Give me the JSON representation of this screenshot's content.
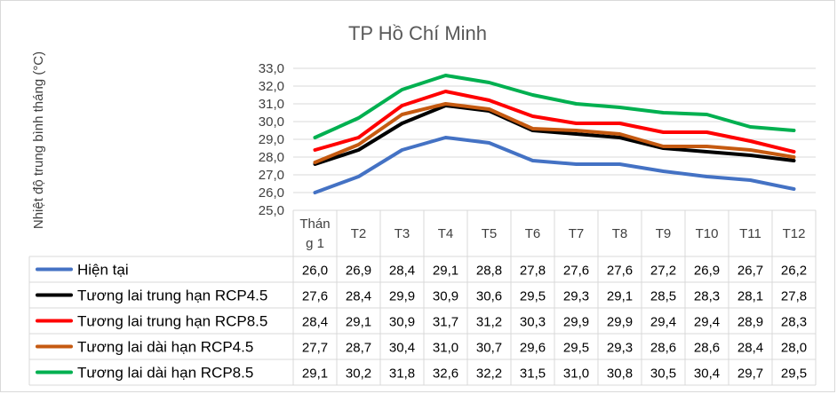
{
  "chart_data": {
    "type": "line",
    "title": "TP Hồ Chí Minh",
    "ylabel": "Nhiệt độ trung bình tháng (°C)",
    "ylim": [
      25.0,
      33.0
    ],
    "yticks": [
      "33,0",
      "32,0",
      "31,0",
      "30,0",
      "29,0",
      "28,0",
      "27,0",
      "26,0",
      "25,0"
    ],
    "categories": [
      "Tháng 1",
      "T2",
      "T3",
      "T4",
      "T5",
      "T6",
      "T7",
      "T8",
      "T9",
      "T10",
      "T11",
      "T12"
    ],
    "series": [
      {
        "name": "Hiện tại",
        "color": "#4472C4",
        "values": [
          26.0,
          26.9,
          28.4,
          29.1,
          28.8,
          27.8,
          27.6,
          27.6,
          27.2,
          26.9,
          26.7,
          26.2
        ],
        "labels": [
          "26,0",
          "26,9",
          "28,4",
          "29,1",
          "28,8",
          "27,8",
          "27,6",
          "27,6",
          "27,2",
          "26,9",
          "26,7",
          "26,2"
        ]
      },
      {
        "name": "Tương lai trung hạn RCP4.5",
        "color": "#000000",
        "values": [
          27.6,
          28.4,
          29.9,
          30.9,
          30.6,
          29.5,
          29.3,
          29.1,
          28.5,
          28.3,
          28.1,
          27.8
        ],
        "labels": [
          "27,6",
          "28,4",
          "29,9",
          "30,9",
          "30,6",
          "29,5",
          "29,3",
          "29,1",
          "28,5",
          "28,3",
          "28,1",
          "27,8"
        ]
      },
      {
        "name": "Tương lai trung hạn RCP8.5",
        "color": "#FF0000",
        "values": [
          28.4,
          29.1,
          30.9,
          31.7,
          31.2,
          30.3,
          29.9,
          29.9,
          29.4,
          29.4,
          28.9,
          28.3
        ],
        "labels": [
          "28,4",
          "29,1",
          "30,9",
          "31,7",
          "31,2",
          "30,3",
          "29,9",
          "29,9",
          "29,4",
          "29,4",
          "28,9",
          "28,3"
        ]
      },
      {
        "name": "Tương lai dài hạn RCP4.5",
        "color": "#C55A11",
        "values": [
          27.7,
          28.7,
          30.4,
          31.0,
          30.7,
          29.6,
          29.5,
          29.3,
          28.6,
          28.6,
          28.4,
          28.0
        ],
        "labels": [
          "27,7",
          "28,7",
          "30,4",
          "31,0",
          "30,7",
          "29,6",
          "29,5",
          "29,3",
          "28,6",
          "28,6",
          "28,4",
          "28,0"
        ]
      },
      {
        "name": "Tương lai dài hạn RCP8.5",
        "color": "#00B050",
        "values": [
          29.1,
          30.2,
          31.8,
          32.6,
          32.2,
          31.5,
          31.0,
          30.8,
          30.5,
          30.4,
          29.7,
          29.5
        ],
        "labels": [
          "29,1",
          "30,2",
          "31,8",
          "32,6",
          "32,2",
          "31,5",
          "31,0",
          "30,8",
          "30,5",
          "30,4",
          "29,7",
          "29,5"
        ]
      }
    ]
  }
}
